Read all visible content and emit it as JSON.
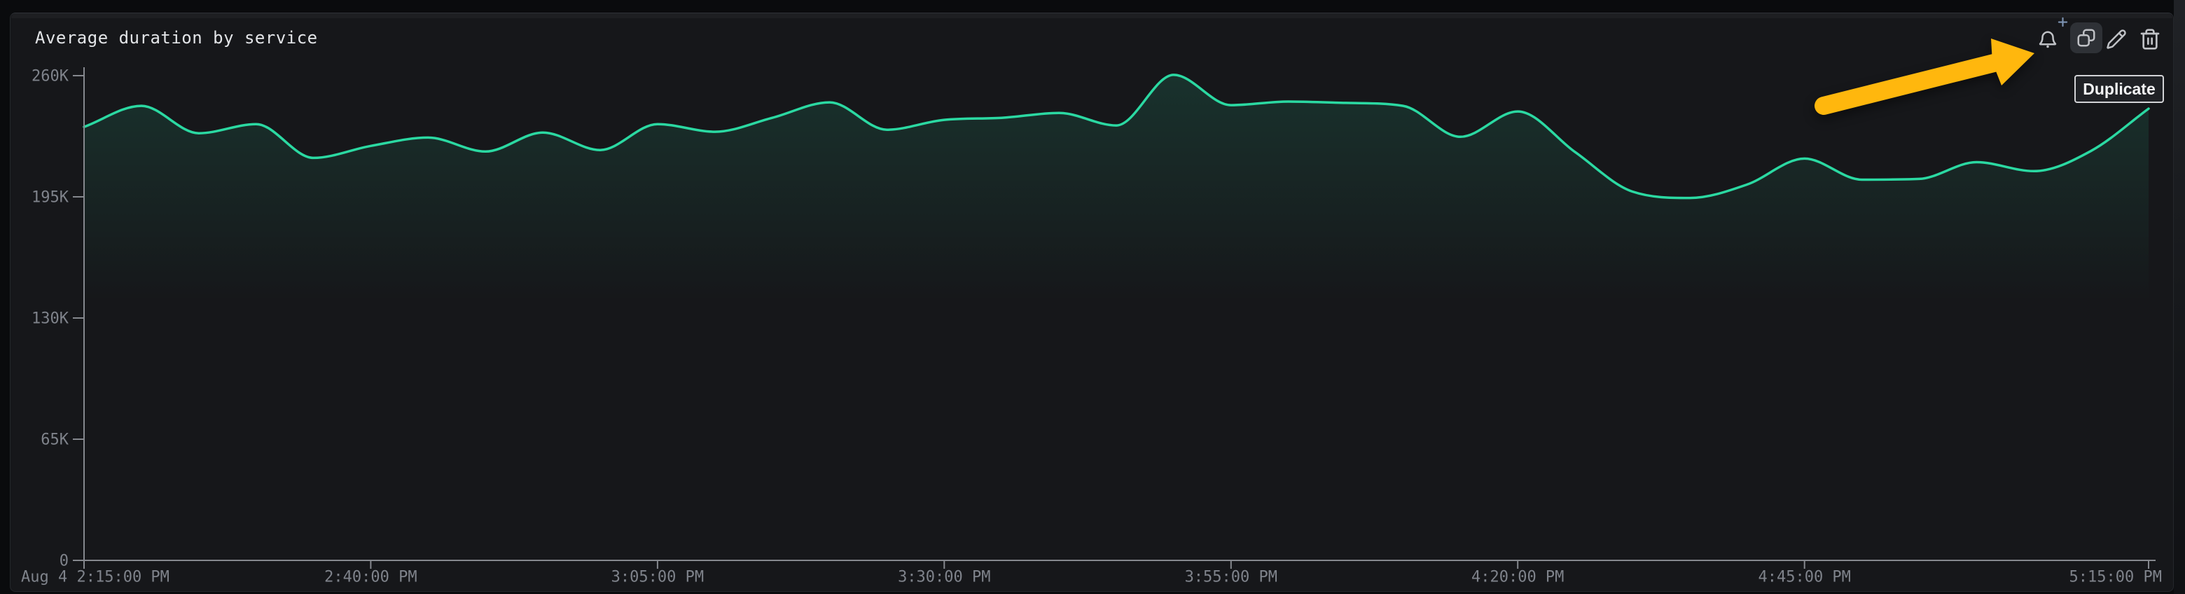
{
  "panel": {
    "title": "Average duration by service"
  },
  "toolbar": {
    "buttons": [
      {
        "id": "alerts",
        "icon": "bell-plus-icon"
      },
      {
        "id": "duplicate",
        "icon": "duplicate-icon",
        "active": true
      },
      {
        "id": "edit",
        "icon": "pencil-icon"
      },
      {
        "id": "delete",
        "icon": "trash-icon"
      }
    ],
    "tooltip": {
      "text": "Duplicate"
    }
  },
  "annotation": {
    "shape": "arrow",
    "color": "#FFB70D",
    "points_at": "duplicate-button"
  },
  "colors": {
    "page_bg": "#0a0b0d",
    "panel_bg": "#16171a",
    "panel_border": "#24272b",
    "axis": "#85888e",
    "tick_label": "#7f838b",
    "title_text": "#e3e5e8",
    "series": "#2bd9a2",
    "tooltip_bg": "#202226",
    "tooltip_border": "#d2d3d6",
    "icon": "#bfc1c5",
    "icon_active_bg": "#2e3136",
    "plus_accent": "#7e94b4",
    "arrow": "#FFB70D"
  },
  "chart_data": {
    "type": "line",
    "title": "Average duration by service",
    "xlabel": "",
    "ylabel": "",
    "x_unit": "time",
    "grid": false,
    "legend": false,
    "xlim_minutes": [
      0,
      180
    ],
    "ylim": [
      0,
      260000
    ],
    "x_ticks": [
      {
        "label": "Aug 4 2:15:00 PM",
        "minutes": 0
      },
      {
        "label": "2:40:00 PM",
        "minutes": 25
      },
      {
        "label": "3:05:00 PM",
        "minutes": 50
      },
      {
        "label": "3:30:00 PM",
        "minutes": 75
      },
      {
        "label": "3:55:00 PM",
        "minutes": 100
      },
      {
        "label": "4:20:00 PM",
        "minutes": 125
      },
      {
        "label": "4:45:00 PM",
        "minutes": 150
      },
      {
        "label": "5:15:00 PM",
        "minutes": 180
      }
    ],
    "y_ticks": [
      {
        "label": "0",
        "value": 0
      },
      {
        "label": "65K",
        "value": 65000
      },
      {
        "label": "130K",
        "value": 130000
      },
      {
        "label": "195K",
        "value": 195000
      },
      {
        "label": "260K",
        "value": 260000
      }
    ],
    "series": [
      {
        "name": "Average duration",
        "color": "#2bd9a2",
        "start_time": "Aug 4 2:15:00 PM",
        "sample_interval_minutes": 5,
        "values": [
          232500,
          243800,
          229100,
          234000,
          215900,
          222300,
          226800,
          219300,
          229500,
          220100,
          234000,
          229900,
          237400,
          245700,
          231000,
          236300,
          237400,
          240000,
          233300,
          260400,
          244200,
          246100,
          245400,
          243800,
          227200,
          240800,
          219000,
          197800,
          194400,
          201600,
          215500,
          204200,
          204600,
          213600,
          208800,
          219700,
          242300
        ]
      }
    ]
  }
}
